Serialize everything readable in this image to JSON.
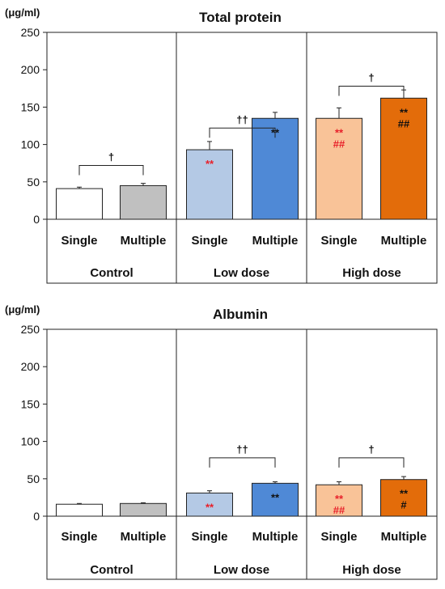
{
  "chart_data": [
    {
      "type": "bar",
      "title": "Total protein",
      "unit": "(μg/ml)",
      "ylim": [
        0,
        250
      ],
      "yticks": [
        "0",
        "50",
        "100",
        "150",
        "200",
        "250"
      ],
      "categories": [
        "Single",
        "Multiple",
        "Single",
        "Multiple",
        "Single",
        "Multiple"
      ],
      "groups": [
        "Control",
        "Low dose",
        "High dose"
      ],
      "values": [
        41,
        45,
        93,
        135,
        135,
        162
      ],
      "errors": [
        2,
        3,
        11,
        8,
        14,
        11
      ],
      "colors": [
        "#ffffff",
        "#c0c0c0",
        "#b4c9e5",
        "#4f89d6",
        "#f9c398",
        "#e36c0a"
      ],
      "annotations": [
        [],
        [],
        [
          {
            "text": "**",
            "color": "#e8202a"
          }
        ],
        [
          {
            "text": "**",
            "color": "#111111"
          }
        ],
        [
          {
            "text": "**",
            "color": "#e8202a"
          },
          {
            "text": "##",
            "color": "#e8202a"
          }
        ],
        [
          {
            "text": "**",
            "color": "#111111"
          },
          {
            "text": "##",
            "color": "#111111"
          }
        ]
      ],
      "brackets": [
        {
          "from": 0,
          "to": 1,
          "y": 72,
          "label": "†"
        },
        {
          "from": 2,
          "to": 3,
          "y": 122,
          "label": "††"
        },
        {
          "from": 4,
          "to": 5,
          "y": 178,
          "label": "†"
        }
      ]
    },
    {
      "type": "bar",
      "title": "Albumin",
      "unit": "(μg/ml)",
      "ylim": [
        0,
        250
      ],
      "yticks": [
        "0",
        "50",
        "100",
        "150",
        "200",
        "250"
      ],
      "categories": [
        "Single",
        "Multiple",
        "Single",
        "Multiple",
        "Single",
        "Multiple"
      ],
      "groups": [
        "Control",
        "Low dose",
        "High dose"
      ],
      "values": [
        16,
        17,
        31,
        44,
        42,
        49
      ],
      "errors": [
        1,
        1,
        3,
        2,
        4,
        4
      ],
      "colors": [
        "#ffffff",
        "#c0c0c0",
        "#b4c9e5",
        "#4f89d6",
        "#f9c398",
        "#e36c0a"
      ],
      "annotations": [
        [],
        [],
        [
          {
            "text": "**",
            "color": "#e8202a"
          }
        ],
        [
          {
            "text": "**",
            "color": "#111111"
          }
        ],
        [
          {
            "text": "**",
            "color": "#e8202a"
          },
          {
            "text": "##",
            "color": "#e8202a"
          }
        ],
        [
          {
            "text": "**",
            "color": "#111111"
          },
          {
            "text": "#",
            "color": "#111111"
          }
        ]
      ],
      "brackets": [
        {
          "from": 2,
          "to": 3,
          "y": 78,
          "label": "††"
        },
        {
          "from": 4,
          "to": 5,
          "y": 78,
          "label": "†"
        }
      ]
    }
  ]
}
